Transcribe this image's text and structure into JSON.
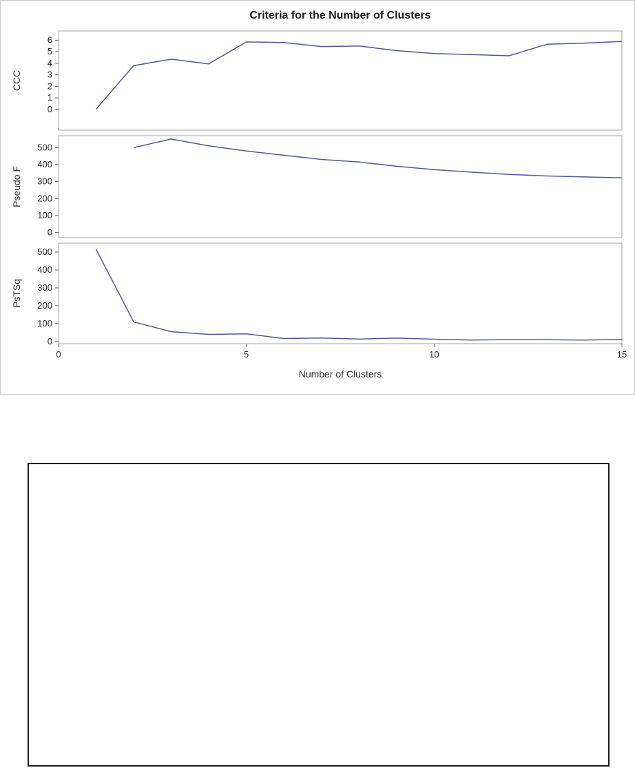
{
  "chart_data": {
    "type": "line",
    "title": "Criteria for the Number of Clusters",
    "xlabel": "Number of Clusters",
    "xlim": [
      0,
      15
    ],
    "x_ticks": [
      0,
      5,
      10,
      15
    ],
    "grid": false,
    "legend": "none",
    "line_color": "#4a5a96",
    "panels": [
      {
        "ylabel": "CCC",
        "ylim": [
          -1.8,
          6.8
        ],
        "y_ticks": [
          0,
          1,
          2,
          3,
          4,
          5,
          6
        ],
        "x": [
          1,
          2,
          3,
          4,
          5,
          6,
          7,
          8,
          9,
          10,
          11,
          12,
          13,
          14,
          15
        ],
        "values": [
          0.02,
          3.8,
          4.35,
          3.95,
          5.85,
          5.8,
          5.45,
          5.5,
          5.1,
          4.85,
          4.75,
          4.65,
          5.65,
          5.75,
          5.9
        ]
      },
      {
        "ylabel": "Pseudo F",
        "ylim": [
          -30,
          570
        ],
        "y_ticks": [
          0,
          100,
          200,
          300,
          400,
          500
        ],
        "x": [
          2,
          3,
          4,
          5,
          6,
          7,
          8,
          9,
          10,
          11,
          12,
          13,
          14,
          15
        ],
        "values": [
          500,
          550,
          510,
          480,
          455,
          430,
          415,
          390,
          370,
          355,
          342,
          333,
          327,
          322
        ]
      },
      {
        "ylabel": "PsTSq",
        "ylim": [
          -12,
          550
        ],
        "y_ticks": [
          0,
          100,
          200,
          300,
          400,
          500
        ],
        "x": [
          1,
          2,
          3,
          4,
          5,
          6,
          7,
          8,
          9,
          10,
          11,
          12,
          13,
          14,
          15
        ],
        "values": [
          515,
          110,
          55,
          40,
          43,
          17,
          20,
          14,
          19,
          13,
          8,
          11,
          10,
          8,
          12
        ]
      }
    ]
  }
}
